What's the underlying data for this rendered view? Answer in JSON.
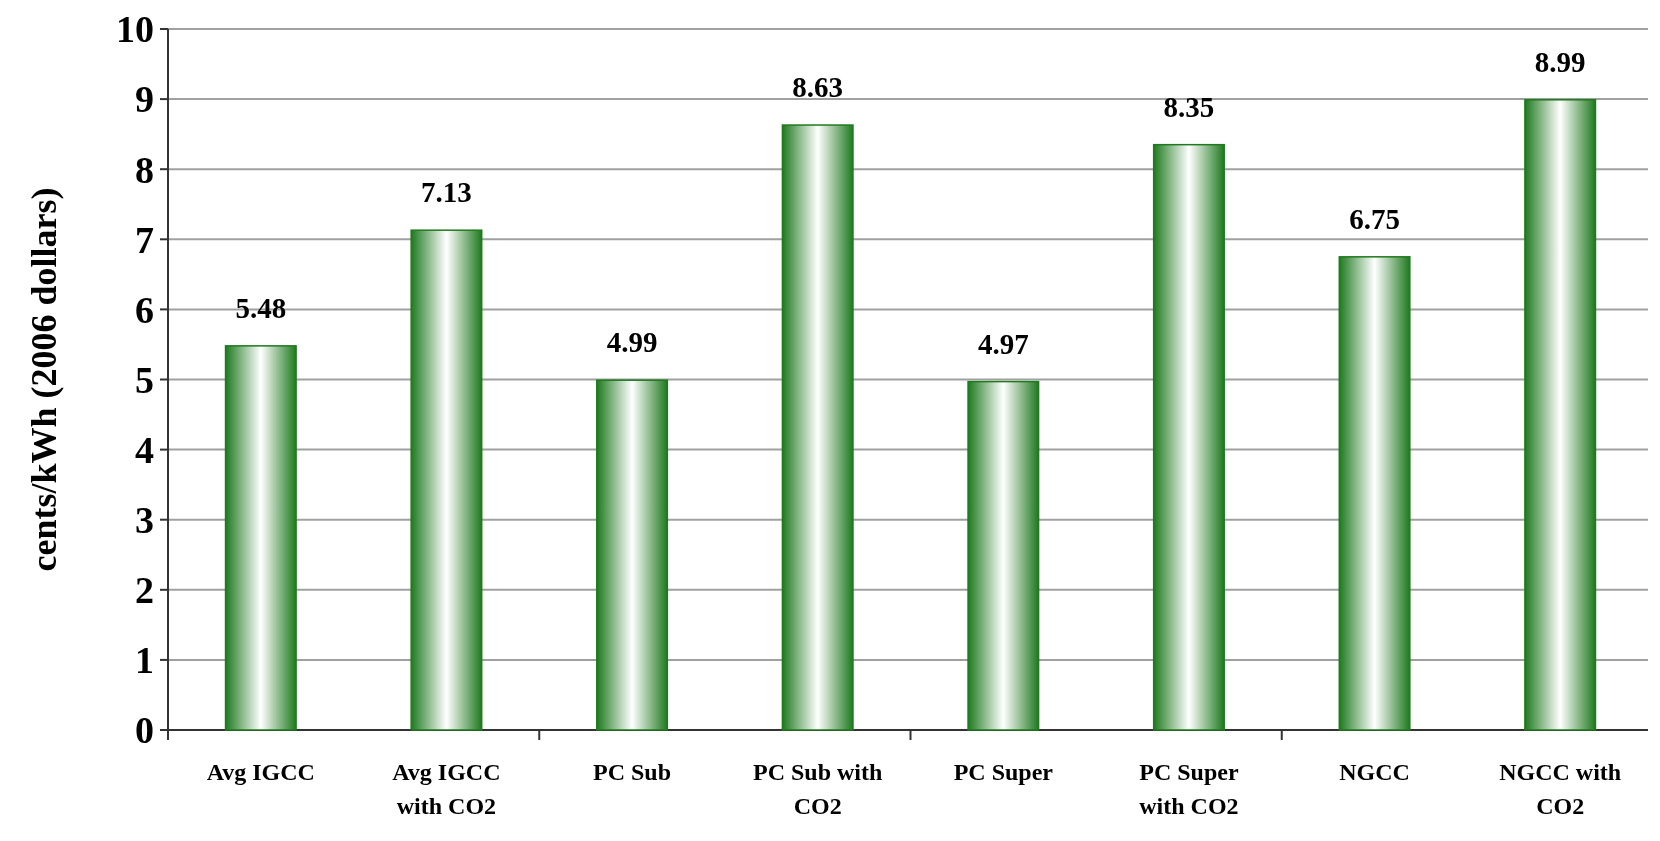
{
  "chart_data": {
    "type": "bar",
    "ylabel": "cents/kWh (2006 dollars)",
    "categories": [
      "Avg IGCC",
      "Avg IGCC with CO2",
      "PC Sub",
      "PC Sub with CO2",
      "PC Super",
      "PC Super with CO2",
      "NGCC",
      "NGCC with CO2"
    ],
    "values": [
      5.48,
      7.13,
      4.99,
      8.63,
      4.97,
      8.35,
      6.75,
      8.99
    ],
    "color": "#1f7a1f",
    "ylim": [
      0,
      10
    ],
    "yticks": [
      0,
      1,
      2,
      3,
      4,
      5,
      6,
      7,
      8,
      9,
      10
    ],
    "grid": "y",
    "data_labels": true
  }
}
